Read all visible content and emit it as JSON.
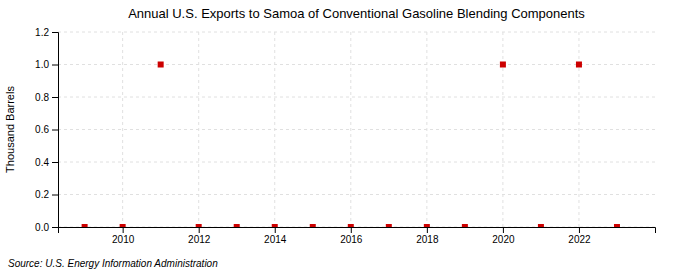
{
  "chart_data": {
    "type": "scatter",
    "title": "Annual U.S. Exports to Samoa of Conventional Gasoline Blending Components",
    "ylabel": "Thousand Barrels",
    "annotations": [
      "Source: U.S. Energy Information Administration"
    ],
    "x": [
      2009,
      2010,
      2011,
      2012,
      2013,
      2014,
      2015,
      2016,
      2017,
      2018,
      2019,
      2020,
      2021,
      2022,
      2023
    ],
    "values": [
      0,
      0,
      1,
      0,
      0,
      0,
      0,
      0,
      0,
      0,
      0,
      1,
      0,
      1,
      0
    ],
    "color": "#cc0000",
    "marker": "square",
    "xlim": [
      2008.3,
      2024.0
    ],
    "ylim": [
      0.0,
      1.2
    ],
    "xticks": [
      2010,
      2012,
      2014,
      2016,
      2018,
      2020,
      2022
    ],
    "yticks": [
      {
        "value": 0.0,
        "label": "0.0"
      },
      0.2,
      0.4,
      0.6,
      0.8,
      {
        "value": 1.0,
        "label": "1.0"
      },
      1.2
    ],
    "grid": true
  }
}
